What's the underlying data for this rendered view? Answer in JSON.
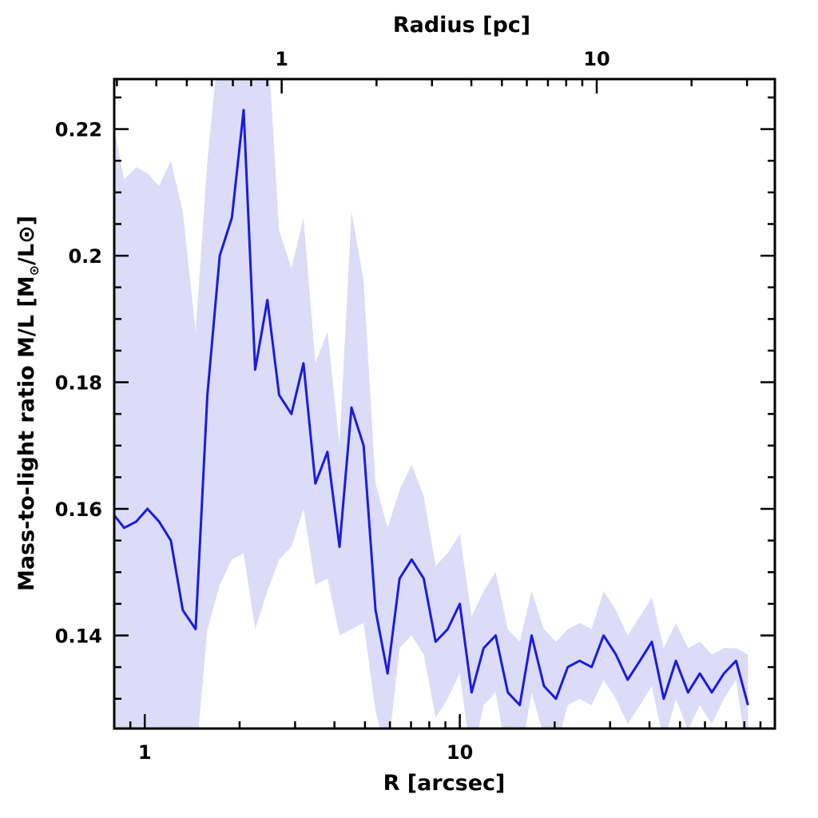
{
  "chart_data": {
    "type": "line",
    "title": "",
    "xlabel": "R [arcsec]",
    "ylabel": "Mass-to-light ratio M/L [M",
    "ylabel_sub": "⊙",
    "ylabel_tail": "/L⊙]",
    "top_xlabel": "Radius [pc]",
    "x_scale": "log",
    "xlim": [
      0.8,
      100
    ],
    "ylim": [
      0.1253,
      0.2279
    ],
    "x_ticks": [
      {
        "value": 1,
        "label": "1"
      },
      {
        "value": 10,
        "label": "10"
      }
    ],
    "y_ticks": [
      {
        "value": 0.14,
        "label": "0.14"
      },
      {
        "value": 0.16,
        "label": "0.16"
      },
      {
        "value": 0.18,
        "label": "0.18"
      },
      {
        "value": 0.2,
        "label": "0.2"
      },
      {
        "value": 0.22,
        "label": "0.22"
      }
    ],
    "top_axis": {
      "scale": "log",
      "arcsec_per_pc": 2.72,
      "ticks": [
        {
          "value": 1,
          "label": "1"
        },
        {
          "value": 10,
          "label": "10"
        }
      ]
    },
    "grid": false,
    "colors": {
      "line": "#1a1ae6",
      "band": "#dcdcf8",
      "axes": "#000000"
    },
    "series": [
      {
        "x": [
          0.8,
          0.86,
          0.94,
          1.02,
          1.11,
          1.21,
          1.32,
          1.45,
          1.58,
          1.73,
          1.89,
          2.06,
          2.24,
          2.45,
          2.67,
          2.92,
          3.19,
          3.48,
          3.8,
          4.15,
          4.53,
          4.95,
          5.4,
          5.9,
          6.44,
          7.03,
          7.68,
          8.38,
          9.15,
          10.0,
          10.9,
          11.9,
          13.0,
          14.2,
          15.5,
          16.9,
          18.5,
          20.2,
          22.0,
          24.0,
          26.2,
          28.6,
          31.3,
          34.1,
          37.3,
          40.7,
          44.4,
          48.5,
          53.0,
          57.8,
          63.1,
          68.9,
          75.3,
          82.2
        ],
        "y": [
          0.159,
          0.157,
          0.158,
          0.16,
          0.158,
          0.155,
          0.144,
          0.141,
          0.178,
          0.2,
          0.206,
          0.223,
          0.182,
          0.193,
          0.178,
          0.175,
          0.183,
          0.164,
          0.169,
          0.154,
          0.176,
          0.17,
          0.144,
          0.134,
          0.149,
          0.152,
          0.149,
          0.139,
          0.141,
          0.145,
          0.131,
          0.138,
          0.14,
          0.131,
          0.129,
          0.14,
          0.132,
          0.13,
          0.135,
          0.136,
          0.135,
          0.14,
          0.137,
          0.133,
          0.136,
          0.139,
          0.13,
          0.136,
          0.131,
          0.134,
          0.131,
          0.134,
          0.136,
          0.129
        ],
        "upper": [
          0.22,
          0.212,
          0.214,
          0.213,
          0.211,
          0.215,
          0.207,
          0.188,
          0.215,
          0.235,
          0.24,
          0.25,
          0.228,
          0.235,
          0.204,
          0.198,
          0.206,
          0.183,
          0.188,
          0.17,
          0.207,
          0.196,
          0.164,
          0.157,
          0.163,
          0.167,
          0.162,
          0.151,
          0.153,
          0.156,
          0.143,
          0.147,
          0.15,
          0.141,
          0.139,
          0.147,
          0.141,
          0.139,
          0.141,
          0.142,
          0.141,
          0.147,
          0.144,
          0.14,
          0.143,
          0.146,
          0.138,
          0.142,
          0.138,
          0.139,
          0.137,
          0.138,
          0.138,
          0.137
        ],
        "lower": [
          0.12,
          0.12,
          0.12,
          0.12,
          0.12,
          0.12,
          0.12,
          0.12,
          0.141,
          0.148,
          0.152,
          0.153,
          0.141,
          0.147,
          0.152,
          0.154,
          0.16,
          0.148,
          0.149,
          0.14,
          0.141,
          0.142,
          0.128,
          0.121,
          0.138,
          0.14,
          0.137,
          0.127,
          0.13,
          0.134,
          0.12,
          0.129,
          0.131,
          0.12,
          0.12,
          0.131,
          0.124,
          0.122,
          0.129,
          0.13,
          0.129,
          0.133,
          0.13,
          0.126,
          0.129,
          0.132,
          0.123,
          0.13,
          0.125,
          0.129,
          0.126,
          0.13,
          0.133,
          0.12
        ]
      }
    ]
  }
}
